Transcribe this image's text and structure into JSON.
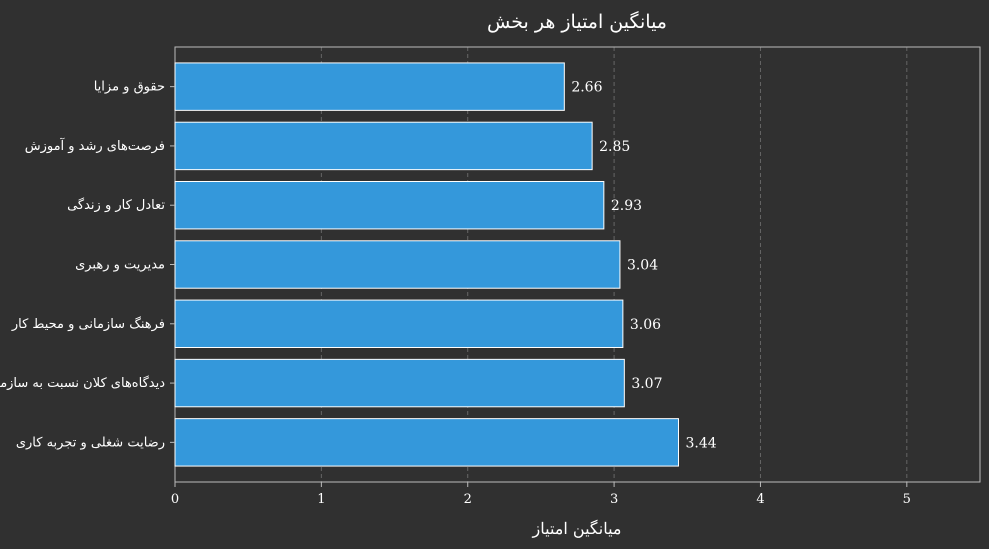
{
  "chart_data": {
    "type": "bar",
    "orientation": "horizontal",
    "title": "میانگین امتیاز هر بخش",
    "xlabel": "میانگین امتیاز",
    "ylabel": "",
    "categories": [
      "حقوق و مزایا",
      "فرصت‌های رشد و آموزش",
      "تعادل کار و زندگی",
      "مدیریت و رهبری",
      "فرهنگ سازمانی و محیط کار",
      "دیدگاه‌های کلان نسبت به سازمان",
      "رضایت شغلی و تجربه کاری"
    ],
    "values": [
      2.66,
      2.85,
      2.93,
      3.04,
      3.06,
      3.07,
      3.44
    ],
    "value_labels": [
      "2.66",
      "2.85",
      "2.93",
      "3.04",
      "3.06",
      "3.07",
      "3.44"
    ],
    "xlim": [
      0,
      5.5
    ],
    "x_ticks": [
      "0",
      "1",
      "2",
      "3",
      "4",
      "5"
    ],
    "grid": "vertical-dashed",
    "colors": {
      "background": "#303030",
      "bar": "#3498db",
      "bar_edge": "#ffffff",
      "text": "#ffffff",
      "grid": "#666666",
      "axes": "#bbbbbb"
    }
  }
}
